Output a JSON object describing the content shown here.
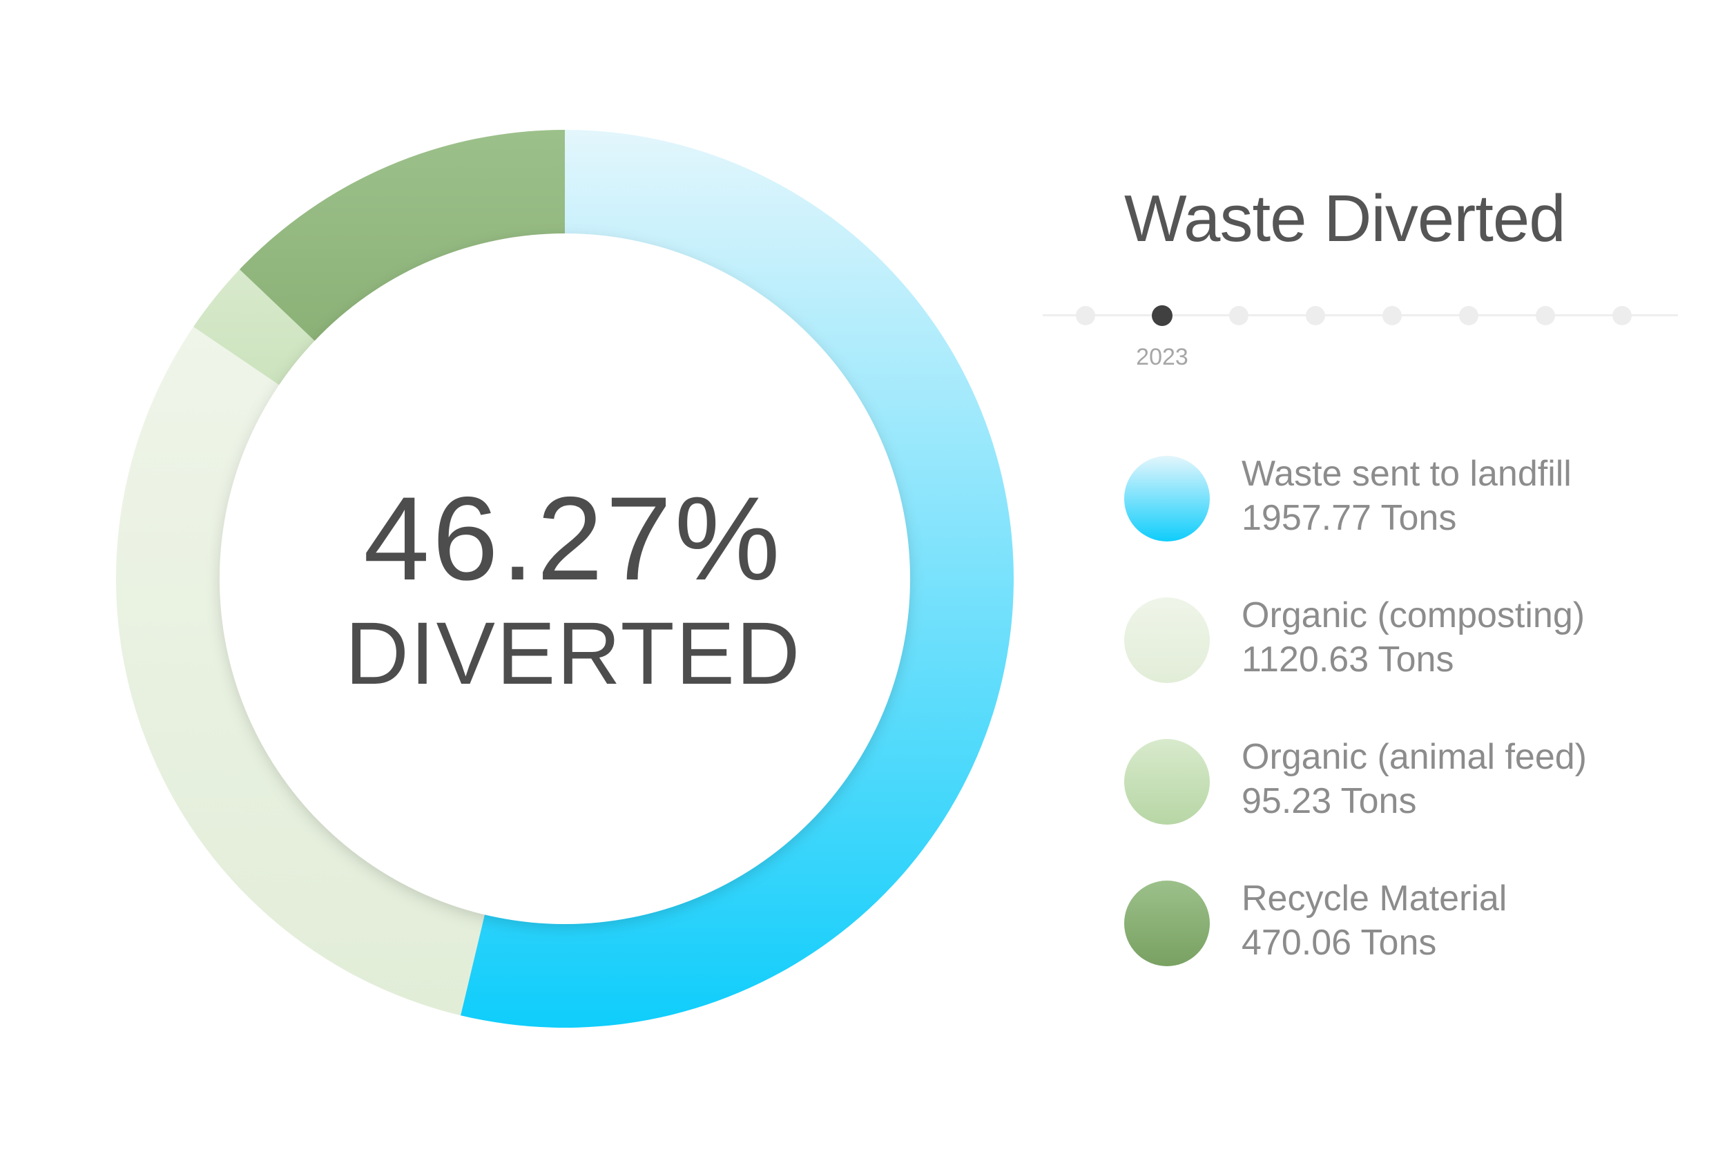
{
  "title": "Waste Diverted",
  "center": {
    "value": "46.27%",
    "label": "DIVERTED"
  },
  "timeline": {
    "dot_count": 8,
    "active_index": 1,
    "active_label": "2023"
  },
  "legend": [
    {
      "name": "Waste sent to landfill",
      "value_text": "1957.77 Tons"
    },
    {
      "name": "Organic (composting)",
      "value_text": "1120.63 Tons"
    },
    {
      "name": "Organic (animal feed)",
      "value_text": "95.23 Tons"
    },
    {
      "name": "Recycle Material",
      "value_text": "470.06 Tons"
    }
  ],
  "colors": {
    "landfill": [
      "#e3f6fc",
      "#0fcdfb"
    ],
    "composting": [
      "#eff5e9",
      "#e2edd8"
    ],
    "animal_feed": [
      "#d8eacc",
      "#b7d6a5"
    ],
    "recycle": [
      "#9cc08a",
      "#79a162"
    ]
  },
  "chart_data": {
    "type": "pie",
    "title": "Waste Diverted",
    "categories": [
      "Waste sent to landfill",
      "Organic (composting)",
      "Organic (animal feed)",
      "Recycle Material"
    ],
    "values": [
      1957.77,
      1120.63,
      95.23,
      470.06
    ],
    "units": "Tons",
    "donut": true,
    "center_value": "46.27%",
    "center_label": "DIVERTED",
    "legend_position": "right"
  }
}
